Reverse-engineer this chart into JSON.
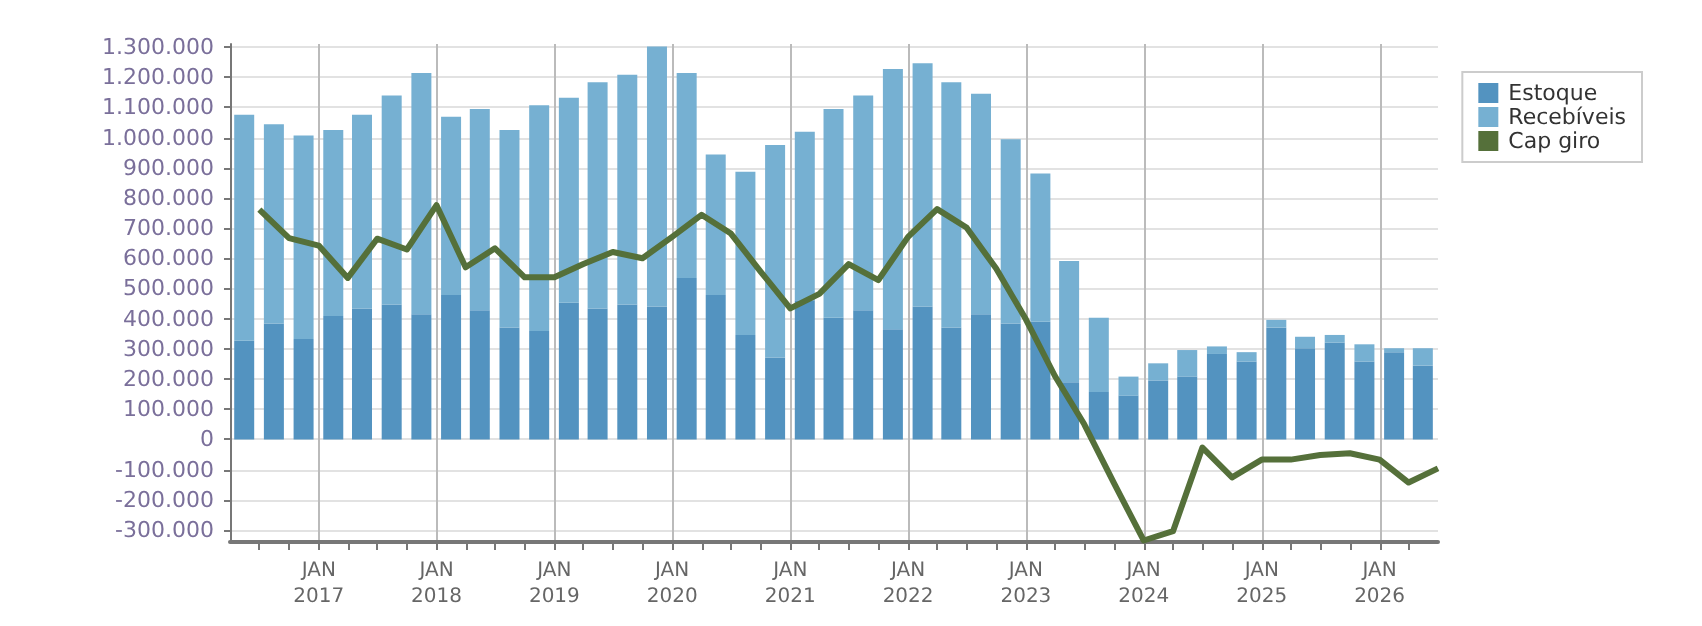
{
  "chart_data": {
    "type": "bar",
    "stacked": true,
    "grid": true,
    "legend": "top right",
    "xlim": [
      "2016-04-01",
      "2026-07-01"
    ],
    "xticks": [
      {
        "value": "2016-07-01",
        "label": null
      },
      {
        "value": "2016-10-01",
        "label": null
      },
      {
        "value": "2017-01-01",
        "label": "JAN\n2017"
      },
      {
        "value": "2017-04-01",
        "label": null
      },
      {
        "value": "2017-07-01",
        "label": null
      },
      {
        "value": "2017-10-01",
        "label": null
      },
      {
        "value": "2018-01-01",
        "label": "JAN\n2018"
      },
      {
        "value": "2018-04-01",
        "label": null
      },
      {
        "value": "2018-07-01",
        "label": null
      },
      {
        "value": "2018-10-01",
        "label": null
      },
      {
        "value": "2019-01-01",
        "label": "JAN\n2019"
      },
      {
        "value": "2019-04-01",
        "label": null
      },
      {
        "value": "2019-07-01",
        "label": null
      },
      {
        "value": "2019-10-01",
        "label": null
      },
      {
        "value": "2020-01-01",
        "label": "JAN\n2020"
      },
      {
        "value": "2020-04-01",
        "label": null
      },
      {
        "value": "2020-07-01",
        "label": null
      },
      {
        "value": "2020-10-01",
        "label": null
      },
      {
        "value": "2021-01-01",
        "label": "JAN\n2021"
      },
      {
        "value": "2021-04-01",
        "label": null
      },
      {
        "value": "2021-07-01",
        "label": null
      },
      {
        "value": "2021-10-01",
        "label": null
      },
      {
        "value": "2022-01-01",
        "label": "JAN\n2022"
      },
      {
        "value": "2022-04-01",
        "label": null
      },
      {
        "value": "2022-07-01",
        "label": null
      },
      {
        "value": "2022-10-01",
        "label": null
      },
      {
        "value": "2023-01-01",
        "label": "JAN\n2023"
      },
      {
        "value": "2023-04-01",
        "label": null
      },
      {
        "value": "2023-07-01",
        "label": null
      },
      {
        "value": "2023-10-01",
        "label": null
      },
      {
        "value": "2024-01-01",
        "label": "JAN\n2024"
      },
      {
        "value": "2024-04-01",
        "label": null
      },
      {
        "value": "2024-07-01",
        "label": null
      },
      {
        "value": "2024-10-01",
        "label": null
      },
      {
        "value": "2025-01-01",
        "label": "JAN\n2025"
      },
      {
        "value": "2025-04-01",
        "label": null
      },
      {
        "value": "2025-07-01",
        "label": null
      },
      {
        "value": "2025-10-01",
        "label": null
      },
      {
        "value": "2026-01-01",
        "label": "JAN\n2026"
      },
      {
        "value": "2026-04-01",
        "label": null
      }
    ],
    "ylim": [
      -340000,
      1310000
    ],
    "yticks": [
      {
        "value": -300000,
        "label": "-300.000"
      },
      {
        "value": -200000,
        "label": "-200.000"
      },
      {
        "value": -100000,
        "label": "-100.000"
      },
      0,
      {
        "value": 100000,
        "label": "100.000"
      },
      {
        "value": 200000,
        "label": "200.000"
      },
      {
        "value": 300000,
        "label": "300.000"
      },
      {
        "value": 400000,
        "label": "400.000"
      },
      {
        "value": 500000,
        "label": "500.000"
      },
      {
        "value": 600000,
        "label": "600.000"
      },
      {
        "value": 700000,
        "label": "700.000"
      },
      {
        "value": 800000,
        "label": "800.000"
      },
      {
        "value": 900000,
        "label": "900.000"
      },
      {
        "value": 1000000,
        "label": "1.000.000"
      },
      {
        "value": 1100000,
        "label": "1.100.000"
      },
      {
        "value": 1200000,
        "label": "1.200.000"
      },
      {
        "value": 1300000,
        "label": "1.300.000"
      }
    ],
    "x": [
      "2016-05-15",
      "2016-08-15",
      "2016-11-15",
      "2017-02-15",
      "2017-05-15",
      "2017-08-15",
      "2017-11-15",
      "2018-02-15",
      "2018-05-15",
      "2018-08-15",
      "2018-11-15",
      "2019-02-15",
      "2019-05-15",
      "2019-08-15",
      "2019-11-15",
      "2020-02-15",
      "2020-05-15",
      "2020-08-15",
      "2020-11-15",
      "2021-02-15",
      "2021-05-15",
      "2021-08-15",
      "2021-11-15",
      "2022-02-15",
      "2022-05-15",
      "2022-08-15",
      "2022-11-15",
      "2023-02-15",
      "2023-05-15",
      "2023-08-15",
      "2023-11-15",
      "2024-02-15",
      "2024-05-15",
      "2024-08-15",
      "2024-11-15",
      "2025-02-15",
      "2025-05-15",
      "2025-08-15",
      "2025-11-15",
      "2026-02-15",
      "2026-05-15"
    ],
    "series": [
      {
        "name": "Estoque",
        "color": "#5393c0",
        "values": [
          327000,
          384000,
          333000,
          409000,
          434000,
          447000,
          415000,
          478000,
          428000,
          371000,
          359000,
          453000,
          434000,
          447000,
          440000,
          535000,
          478000,
          346000,
          271000,
          461000,
          403000,
          428000,
          365000,
          440000,
          371000,
          415000,
          384000,
          390000,
          189000,
          157000,
          145000,
          195000,
          208000,
          283000,
          258000,
          371000,
          302000,
          321000,
          258000,
          289000,
          245000
        ]
      },
      {
        "name": "Recebíveis",
        "color": "#76b0d2",
        "values": [
          749000,
          660000,
          674000,
          616000,
          642000,
          692000,
          799000,
          591000,
          667000,
          654000,
          748000,
          679000,
          749000,
          761000,
          862000,
          679000,
          466000,
          541000,
          704000,
          558000,
          692000,
          711000,
          862000,
          806000,
          812000,
          730000,
          610000,
          491000,
          402000,
          246000,
          63000,
          57000,
          88000,
          25000,
          31000,
          25000,
          38000,
          25000,
          57000,
          13000,
          57000
        ]
      },
      {
        "name": "Cap giro",
        "type": "line",
        "color": "#55703a",
        "x": [
          "2016-07-01",
          "2016-10-01",
          "2017-01-01",
          "2017-04-01",
          "2017-07-01",
          "2017-10-01",
          "2018-01-01",
          "2018-04-01",
          "2018-07-01",
          "2018-10-01",
          "2019-01-01",
          "2019-04-01",
          "2019-07-01",
          "2019-10-01",
          "2020-01-01",
          "2020-04-01",
          "2020-07-01",
          "2020-10-01",
          "2021-01-01",
          "2021-04-01",
          "2021-07-01",
          "2021-10-01",
          "2022-01-01",
          "2022-04-01",
          "2022-07-01",
          "2022-10-01",
          "2023-01-01",
          "2023-04-01",
          "2023-07-01",
          "2023-10-01",
          "2024-01-01",
          "2024-04-01",
          "2024-07-01",
          "2024-10-01",
          "2025-01-01",
          "2025-04-01",
          "2025-07-01",
          "2025-10-01",
          "2026-01-01",
          "2026-04-01",
          "2026-07-01"
        ],
        "values": [
          761000,
          667000,
          642000,
          535000,
          665000,
          629000,
          776000,
          570000,
          633000,
          537000,
          537000,
          581000,
          621000,
          600000,
          671000,
          744000,
          682000,
          556000,
          434000,
          482000,
          581000,
          528000,
          671000,
          763000,
          702000,
          566000,
          398000,
          210000,
          50000,
          -145000,
          -335000,
          -304000,
          -27000,
          -126000,
          -67000,
          -67000,
          -52000,
          -46000,
          -67000,
          -143000,
          -96000
        ]
      }
    ]
  }
}
